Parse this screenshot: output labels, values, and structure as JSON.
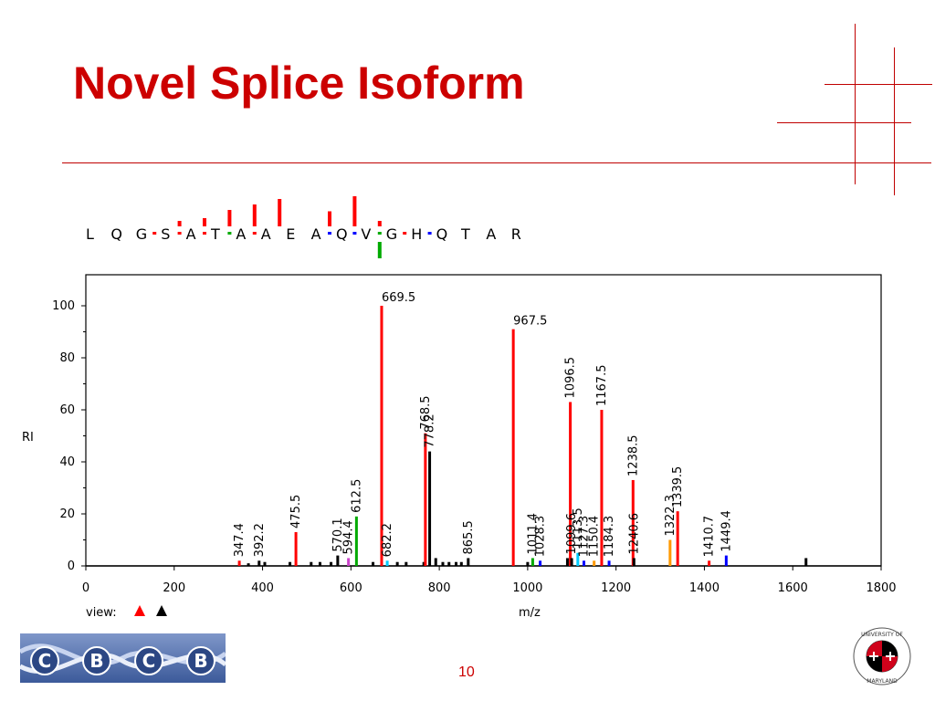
{
  "slide": {
    "title": "Novel Splice Isoform",
    "page_number": "10",
    "accent_color": "#cc0000"
  },
  "logos": {
    "cbcb_letters": [
      "C",
      "B",
      "C",
      "B"
    ],
    "seal_icon": "university-of-maryland-seal",
    "seal_text": "UNIVERSITY OF MARYLAND"
  },
  "sequence": {
    "residues": [
      "L",
      "Q",
      "G",
      "S",
      "A",
      "T",
      "A",
      "A",
      "E",
      "A",
      "Q",
      "V",
      "G",
      "H",
      "Q",
      "T",
      "A",
      "R"
    ],
    "separators": [
      "",
      "",
      "",
      "red",
      "red",
      "red",
      "green",
      "red",
      "",
      "",
      "blue",
      "blue",
      "green",
      "red",
      "blue",
      "",
      "",
      ""
    ]
  },
  "chart_data": {
    "type": "bar",
    "title": "",
    "xlabel": "m/z",
    "ylabel": "RI",
    "xlim": [
      0,
      1800
    ],
    "ylim": [
      0,
      100
    ],
    "x_ticks": [
      0,
      200,
      400,
      600,
      800,
      1000,
      1200,
      1400,
      1600,
      1800
    ],
    "y_ticks": [
      0,
      20,
      40,
      60,
      80,
      100
    ],
    "grid": false,
    "view_label": "view:",
    "view_icons": [
      "red-triangle-icon",
      "black-triangle-icon"
    ],
    "peaks": [
      {
        "mz": 347.4,
        "ri": 2,
        "color": "#ff0000",
        "label": "347.4"
      },
      {
        "mz": 368,
        "ri": 1,
        "color": "#000000",
        "label": ""
      },
      {
        "mz": 392.2,
        "ri": 2,
        "color": "#000000",
        "label": "392.2"
      },
      {
        "mz": 405,
        "ri": 1.5,
        "color": "#000000",
        "label": ""
      },
      {
        "mz": 462,
        "ri": 1.5,
        "color": "#000000",
        "label": ""
      },
      {
        "mz": 475.5,
        "ri": 13,
        "color": "#ff0000",
        "label": "475.5"
      },
      {
        "mz": 510,
        "ri": 1.5,
        "color": "#000000",
        "label": ""
      },
      {
        "mz": 530,
        "ri": 1.5,
        "color": "#000000",
        "label": ""
      },
      {
        "mz": 555,
        "ri": 1.5,
        "color": "#000000",
        "label": ""
      },
      {
        "mz": 570.1,
        "ri": 4,
        "color": "#000000",
        "label": "570.1"
      },
      {
        "mz": 594.4,
        "ri": 3,
        "color": "#cc44cc",
        "label": "594.4"
      },
      {
        "mz": 612.5,
        "ri": 19,
        "color": "#00aa00",
        "label": "612.5"
      },
      {
        "mz": 650,
        "ri": 1.5,
        "color": "#000000",
        "label": ""
      },
      {
        "mz": 669.5,
        "ri": 100,
        "color": "#ff0000",
        "label": "669.5"
      },
      {
        "mz": 682.2,
        "ri": 2,
        "color": "#00ccff",
        "label": "682.2"
      },
      {
        "mz": 705,
        "ri": 1.5,
        "color": "#000000",
        "label": ""
      },
      {
        "mz": 725,
        "ri": 1.5,
        "color": "#000000",
        "label": ""
      },
      {
        "mz": 765,
        "ri": 1.5,
        "color": "#000000",
        "label": ""
      },
      {
        "mz": 768.5,
        "ri": 51,
        "color": "#ff0000",
        "label": "768.5"
      },
      {
        "mz": 778.2,
        "ri": 44,
        "color": "#000000",
        "label": "778.2"
      },
      {
        "mz": 792,
        "ri": 3,
        "color": "#000000",
        "label": ""
      },
      {
        "mz": 808,
        "ri": 1.5,
        "color": "#000000",
        "label": ""
      },
      {
        "mz": 822,
        "ri": 1.5,
        "color": "#000000",
        "label": ""
      },
      {
        "mz": 838,
        "ri": 1.5,
        "color": "#000000",
        "label": ""
      },
      {
        "mz": 850,
        "ri": 1.5,
        "color": "#000000",
        "label": ""
      },
      {
        "mz": 865.5,
        "ri": 3,
        "color": "#000000",
        "label": "865.5"
      },
      {
        "mz": 967.5,
        "ri": 91,
        "color": "#ff0000",
        "label": "967.5"
      },
      {
        "mz": 1000,
        "ri": 1.5,
        "color": "#000000",
        "label": ""
      },
      {
        "mz": 1011.4,
        "ri": 3,
        "color": "#00aa00",
        "label": "1011.4"
      },
      {
        "mz": 1028.3,
        "ri": 2,
        "color": "#0000ff",
        "label": "1028.3"
      },
      {
        "mz": 1090,
        "ri": 3,
        "color": "#000000",
        "label": ""
      },
      {
        "mz": 1096.5,
        "ri": 63,
        "color": "#ff0000",
        "label": "1096.5"
      },
      {
        "mz": 1099.6,
        "ri": 3,
        "color": "#000000",
        "label": "1099.6"
      },
      {
        "mz": 1113.5,
        "ri": 5,
        "color": "#00ccff",
        "label": "1113.5"
      },
      {
        "mz": 1127.3,
        "ri": 2,
        "color": "#0000ff",
        "label": "1127.3"
      },
      {
        "mz": 1150.4,
        "ri": 2,
        "color": "#ff9900",
        "label": "1150.4"
      },
      {
        "mz": 1167.5,
        "ri": 60,
        "color": "#ff0000",
        "label": "1167.5"
      },
      {
        "mz": 1184.3,
        "ri": 2,
        "color": "#0000ff",
        "label": "1184.3"
      },
      {
        "mz": 1238.5,
        "ri": 33,
        "color": "#ff0000",
        "label": "1238.5"
      },
      {
        "mz": 1240.6,
        "ri": 3,
        "color": "#000000",
        "label": "1240.6"
      },
      {
        "mz": 1322.3,
        "ri": 10,
        "color": "#ff9900",
        "label": "1322.3"
      },
      {
        "mz": 1339.5,
        "ri": 21,
        "color": "#ff0000",
        "label": "1339.5"
      },
      {
        "mz": 1410.7,
        "ri": 2,
        "color": "#ff0000",
        "label": "1410.7"
      },
      {
        "mz": 1449.4,
        "ri": 4,
        "color": "#0000ff",
        "label": "1449.4"
      },
      {
        "mz": 1630,
        "ri": 3,
        "color": "#000000",
        "label": ""
      }
    ],
    "ion_markers": [
      {
        "pos": 4,
        "kind": "b",
        "intensity": 0.2
      },
      {
        "pos": 5,
        "kind": "b",
        "intensity": 0.3
      },
      {
        "pos": 6,
        "kind": "b",
        "intensity": 0.6
      },
      {
        "pos": 7,
        "kind": "b",
        "intensity": 0.8
      },
      {
        "pos": 8,
        "kind": "b",
        "intensity": 1.0
      },
      {
        "pos": 10,
        "kind": "b",
        "intensity": 0.55
      },
      {
        "pos": 11,
        "kind": "b",
        "intensity": 1.1
      },
      {
        "pos": 12,
        "kind": "b",
        "intensity": 0.2
      },
      {
        "pos": 12,
        "kind": "y",
        "intensity": 0.6
      }
    ]
  }
}
